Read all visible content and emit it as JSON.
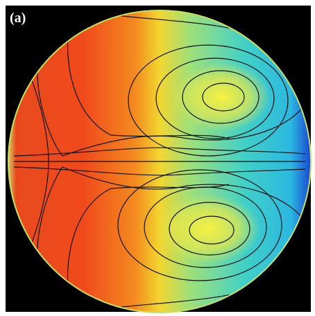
{
  "panel_label": "(a)"
}
